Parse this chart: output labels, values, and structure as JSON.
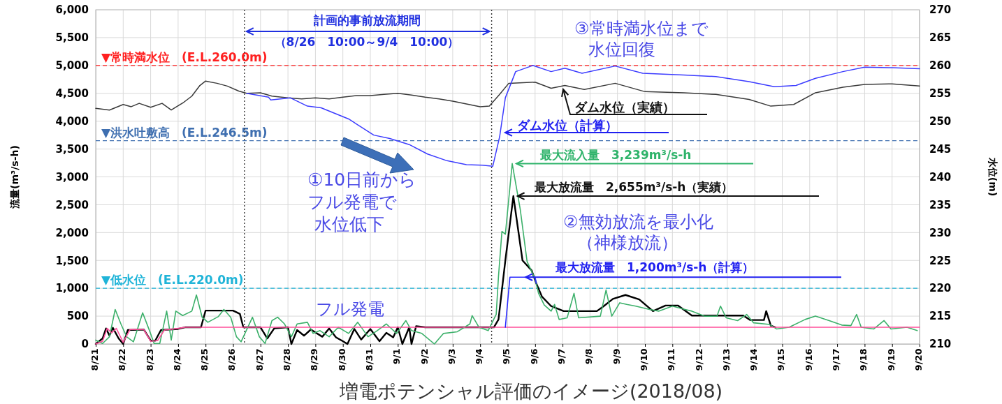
{
  "chart_data": {
    "type": "line",
    "title": "増電ポテンシャル評価のイメージ(2018/08)",
    "ylabel": "流量(m³/s-h)",
    "y2label": "水位(m)",
    "xlim": [
      "2018-08-21",
      "2018-09-20"
    ],
    "xticks": [
      {
        "value": "2018-08-21",
        "label": "8/21"
      },
      {
        "value": "2018-08-22",
        "label": "8/22"
      },
      {
        "value": "2018-08-23",
        "label": "8/23"
      },
      {
        "value": "2018-08-24",
        "label": "8/24"
      },
      {
        "value": "2018-08-25",
        "label": "8/25"
      },
      {
        "value": "2018-08-26",
        "label": "8/26"
      },
      {
        "value": "2018-08-27",
        "label": "8/27"
      },
      {
        "value": "2018-08-28",
        "label": "8/28"
      },
      {
        "value": "2018-08-29",
        "label": "8/29"
      },
      {
        "value": "2018-08-30",
        "label": "8/30"
      },
      {
        "value": "2018-08-31",
        "label": "8/31"
      },
      {
        "value": "2018-09-01",
        "label": "9/1"
      },
      {
        "value": "2018-09-02",
        "label": "9/2"
      },
      {
        "value": "2018-09-03",
        "label": "9/3"
      },
      {
        "value": "2018-09-04",
        "label": "9/4"
      },
      {
        "value": "2018-09-05",
        "label": "9/5"
      },
      {
        "value": "2018-09-06",
        "label": "9/6"
      },
      {
        "value": "2018-09-07",
        "label": "9/7"
      },
      {
        "value": "2018-09-08",
        "label": "9/8"
      },
      {
        "value": "2018-09-09",
        "label": "9/9"
      },
      {
        "value": "2018-09-10",
        "label": "9/10"
      },
      {
        "value": "2018-09-11",
        "label": "9/11"
      },
      {
        "value": "2018-09-12",
        "label": "9/12"
      },
      {
        "value": "2018-09-13",
        "label": "9/13"
      },
      {
        "value": "2018-09-14",
        "label": "9/14"
      },
      {
        "value": "2018-09-15",
        "label": "9/15"
      },
      {
        "value": "2018-09-16",
        "label": "9/16"
      },
      {
        "value": "2018-09-17",
        "label": "9/17"
      },
      {
        "value": "2018-09-18",
        "label": "9/18"
      },
      {
        "value": "2018-09-19",
        "label": "9/19"
      },
      {
        "value": "2018-09-20",
        "label": "9/20"
      }
    ],
    "ylim": [
      0,
      6000
    ],
    "yticks": [
      0,
      {
        "value": 500,
        "label": "500"
      },
      {
        "value": 1000,
        "label": "1,000"
      },
      {
        "value": 1500,
        "label": "1,500"
      },
      {
        "value": 2000,
        "label": "2,000"
      },
      {
        "value": 2500,
        "label": "2,500"
      },
      {
        "value": 3000,
        "label": "3,000"
      },
      {
        "value": 3500,
        "label": "3,500"
      },
      {
        "value": 4000,
        "label": "4,000"
      },
      {
        "value": 4500,
        "label": "4,500"
      },
      {
        "value": 5000,
        "label": "5,000"
      },
      {
        "value": 5500,
        "label": "5,500"
      },
      {
        "value": 6000,
        "label": "6,000"
      }
    ],
    "y2lim": [
      210,
      270
    ],
    "y2ticks": [
      210,
      215,
      220,
      225,
      230,
      235,
      240,
      245,
      250,
      255,
      260,
      265,
      270
    ],
    "grid": true,
    "series": [
      {
        "color": "#3cb06a",
        "x": [
          "2018-08-21T00:00",
          "2018-08-21T06:00",
          "2018-08-21T12:00",
          "2018-08-21T17:00",
          "2018-08-21T22:00",
          "2018-08-22T03:00",
          "2018-08-22T09:00",
          "2018-08-22T17:00",
          "2018-08-22T23:00",
          "2018-08-23T03:00",
          "2018-08-23T08:00",
          "2018-08-23T14:00",
          "2018-08-23T18:00",
          "2018-08-23T22:00",
          "2018-08-24T04:00",
          "2018-08-24T12:00",
          "2018-08-24T16:00",
          "2018-08-24T21:00",
          "2018-08-25T02:00",
          "2018-08-25T11:00",
          "2018-08-25T16:00",
          "2018-08-25T22:00",
          "2018-08-26T03:00",
          "2018-08-26T07:00",
          "2018-08-26T17:00",
          "2018-08-26T23:00",
          "2018-08-27T04:00",
          "2018-08-27T10:00",
          "2018-08-27T15:00",
          "2018-08-27T21:00",
          "2018-08-28T03:00",
          "2018-08-28T08:00",
          "2018-08-28T17:00",
          "2018-08-28T22:00",
          "2018-08-29T04:00",
          "2018-08-29T12:00",
          "2018-08-29T20:00",
          "2018-08-30T05:00",
          "2018-08-30T13:00",
          "2018-08-30T22:00",
          "2018-08-31T06:00",
          "2018-08-31T14:00",
          "2018-08-31T23:00",
          "2018-09-01T07:00",
          "2018-09-01T12:00",
          "2018-09-01T21:00",
          "2018-09-02T08:00",
          "2018-09-02T16:00",
          "2018-09-03T04:00",
          "2018-09-03T15:00",
          "2018-09-03T17:00",
          "2018-09-03T23:00",
          "2018-09-04T07:00",
          "2018-09-04T12:00",
          "2018-09-04T14:00",
          "2018-09-04T16:00",
          "2018-09-04T19:00",
          "2018-09-04T22:00",
          "2018-09-05T04:00",
          "2018-09-05T11:00",
          "2018-09-05T17:00",
          "2018-09-06T00:00",
          "2018-09-06T03:00",
          "2018-09-06T08:00",
          "2018-09-06T14:00",
          "2018-09-06T17:00",
          "2018-09-06T21:00",
          "2018-09-07T04:00",
          "2018-09-07T10:00",
          "2018-09-07T14:00",
          "2018-09-08T09:00",
          "2018-09-08T14:00",
          "2018-09-08T19:00",
          "2018-09-09T02:00",
          "2018-09-09T08:00",
          "2018-09-09T16:00",
          "2018-09-10T04:00",
          "2018-09-10T12:00",
          "2018-09-11T00:00",
          "2018-09-11T11:00",
          "2018-09-11T17:00",
          "2018-09-12T04:00",
          "2018-09-12T15:00",
          "2018-09-12T18:00",
          "2018-09-12T23:00",
          "2018-09-13T09:00",
          "2018-09-13T17:00",
          "2018-09-13T23:00",
          "2018-09-14T13:00",
          "2018-09-14T19:00",
          "2018-09-15T06:00",
          "2018-09-15T20:00",
          "2018-09-16T05:00",
          "2018-09-16T17:00",
          "2018-09-17T04:00",
          "2018-09-17T12:00",
          "2018-09-17T17:00",
          "2018-09-17T21:00",
          "2018-09-18T08:00",
          "2018-09-18T17:00",
          "2018-09-18T23:00",
          "2018-09-19T13:00",
          "2018-09-19T22:00"
        ],
        "values": [
          70,
          10,
          130,
          620,
          360,
          130,
          40,
          560,
          240,
          10,
          10,
          590,
          70,
          590,
          510,
          590,
          880,
          480,
          390,
          490,
          620,
          480,
          130,
          40,
          480,
          130,
          10,
          420,
          480,
          360,
          130,
          360,
          390,
          190,
          240,
          130,
          300,
          190,
          390,
          130,
          240,
          360,
          190,
          420,
          240,
          190,
          0,
          190,
          220,
          360,
          510,
          300,
          240,
          450,
          530,
          1210,
          2020,
          1970,
          3239,
          2420,
          1480,
          1170,
          910,
          700,
          590,
          710,
          440,
          470,
          910,
          470,
          500,
          970,
          500,
          740,
          710,
          680,
          620,
          590,
          680,
          620,
          590,
          500,
          500,
          680,
          470,
          420,
          530,
          380,
          350,
          270,
          300,
          440,
          500,
          420,
          340,
          330,
          530,
          300,
          270,
          420,
          270,
          300,
          240
        ]
      },
      {
        "color": "#ff4f9a",
        "x": [
          "2018-08-21T00:00",
          "2018-08-21T06:00",
          "2018-08-21T10:00",
          "2018-08-21T14:00",
          "2018-08-21T18:00",
          "2018-08-22T00:00",
          "2018-08-22T06:00",
          "2018-08-22T18:00",
          "2018-08-23T00:00",
          "2018-08-23T06:00",
          "2018-08-23T12:00",
          "2018-08-24T00:00",
          "2018-08-24T06:00",
          "2018-09-20T00:00"
        ],
        "values": [
          0,
          50,
          280,
          200,
          280,
          30,
          260,
          260,
          50,
          60,
          250,
          280,
          300,
          300
        ]
      },
      {
        "color": "#2a2aff",
        "x": [
          "2018-09-04T22:00",
          "2018-09-05T02:00",
          "2018-09-06T00:00",
          "2018-09-06T01:00"
        ],
        "values": [
          300,
          1200,
          1200,
          1090
        ]
      },
      {
        "color": "#000000",
        "x": [
          "2018-08-21T00:00",
          "2018-08-21T06:00",
          "2018-08-21T09:00",
          "2018-08-21T12:00",
          "2018-08-21T15:00",
          "2018-08-21T20:00",
          "2018-08-22T00:00",
          "2018-08-22T04:00",
          "2018-08-22T18:00",
          "2018-08-23T00:00",
          "2018-08-23T04:00",
          "2018-08-23T09:00",
          "2018-08-24T00:00",
          "2018-08-24T06:00",
          "2018-08-24T20:00",
          "2018-08-25T00:00",
          "2018-08-26T00:00",
          "2018-08-26T06:00",
          "2018-08-26T09:00",
          "2018-08-27T00:00",
          "2018-08-27T06:00",
          "2018-08-27T12:00",
          "2018-08-28T00:00",
          "2018-08-28T03:00",
          "2018-08-28T08:00",
          "2018-08-28T14:00",
          "2018-08-28T20:00",
          "2018-08-29T06:00",
          "2018-08-29T12:00",
          "2018-08-29T18:00",
          "2018-08-30T00:00",
          "2018-08-30T04:00",
          "2018-08-30T10:00",
          "2018-08-30T16:00",
          "2018-08-31T00:00",
          "2018-08-31T08:00",
          "2018-08-31T14:00",
          "2018-08-31T20:00",
          "2018-09-01T00:00",
          "2018-09-01T04:00",
          "2018-09-01T10:00",
          "2018-09-01T12:00",
          "2018-09-01T16:00",
          "2018-09-02T00:00",
          "2018-09-04T12:00",
          "2018-09-04T16:00",
          "2018-09-04T22:00",
          "2018-09-05T05:00",
          "2018-09-05T13:00",
          "2018-09-05T21:00",
          "2018-09-06T01:00",
          "2018-09-06T06:00",
          "2018-09-06T14:00",
          "2018-09-07T01:00",
          "2018-09-08T06:00",
          "2018-09-08T12:00",
          "2018-09-08T20:00",
          "2018-09-09T07:00",
          "2018-09-09T19:00",
          "2018-09-10T07:00",
          "2018-09-10T18:00",
          "2018-09-11T05:00",
          "2018-09-11T17:00",
          "2018-09-13T14:00",
          "2018-09-13T20:00",
          "2018-09-14T08:00",
          "2018-09-14T10:00",
          "2018-09-14T14:00",
          "2018-09-14T18:00"
        ],
        "values": [
          0,
          100,
          280,
          150,
          290,
          100,
          0,
          250,
          260,
          60,
          60,
          250,
          270,
          300,
          300,
          600,
          600,
          540,
          300,
          300,
          100,
          280,
          300,
          0,
          250,
          150,
          260,
          130,
          280,
          120,
          50,
          0,
          270,
          80,
          270,
          50,
          200,
          120,
          300,
          0,
          300,
          0,
          320,
          300,
          300,
          440,
          1500,
          2655,
          1500,
          1320,
          1090,
          850,
          680,
          590,
          590,
          680,
          810,
          880,
          800,
          590,
          690,
          690,
          510,
          510,
          430,
          430,
          590,
          330,
          300
        ]
      },
      {
        "name": "ダム水位（実績）",
        "color": "#3a3a3a",
        "axis": "y2",
        "x": [
          "2018-08-21T00:00",
          "2018-08-21T12:00",
          "2018-08-22T00:00",
          "2018-08-22T07:00",
          "2018-08-22T14:00",
          "2018-08-23T00:00",
          "2018-08-23T10:00",
          "2018-08-23T18:00",
          "2018-08-24T05:00",
          "2018-08-24T12:00",
          "2018-08-24T19:00",
          "2018-08-25T00:00",
          "2018-08-25T10:00",
          "2018-08-25T19:00",
          "2018-08-26T05:00",
          "2018-08-26T12:00",
          "2018-08-27T00:00",
          "2018-08-27T10:00",
          "2018-08-28T00:00",
          "2018-08-28T12:00",
          "2018-08-29T00:00",
          "2018-08-29T12:00",
          "2018-08-30T00:00",
          "2018-08-30T12:00",
          "2018-08-31T00:00",
          "2018-08-31T12:00",
          "2018-09-01T00:00",
          "2018-09-01T12:00",
          "2018-09-02T00:00",
          "2018-09-02T12:00",
          "2018-09-03T00:00",
          "2018-09-03T12:00",
          "2018-09-04T00:00",
          "2018-09-04T08:00",
          "2018-09-04T17:00",
          "2018-09-05T01:00",
          "2018-09-06T00:00",
          "2018-09-06T14:00",
          "2018-09-07T02:00",
          "2018-09-07T19:00",
          "2018-09-08T22:00",
          "2018-09-10T00:00",
          "2018-09-11T10:00",
          "2018-09-12T14:00",
          "2018-09-13T19:00",
          "2018-09-14T14:00",
          "2018-09-15T10:00",
          "2018-09-16T05:00",
          "2018-09-17T05:00",
          "2018-09-18T00:00",
          "2018-09-19T00:00",
          "2018-09-20T00:00"
        ],
        "values": [
          252.3,
          252.0,
          253.0,
          252.6,
          253.2,
          252.5,
          253.2,
          252.0,
          253.4,
          254.5,
          256.4,
          257.2,
          256.8,
          256.3,
          255.4,
          255.0,
          255.1,
          254.5,
          254.2,
          254.0,
          254.2,
          254.0,
          254.3,
          254.6,
          254.6,
          254.8,
          255.0,
          254.7,
          254.3,
          254.0,
          253.6,
          253.1,
          252.6,
          252.7,
          254.8,
          256.8,
          257.0,
          255.9,
          256.4,
          255.7,
          256.8,
          255.3,
          255.1,
          254.8,
          253.9,
          252.7,
          253.0,
          255.1,
          256.1,
          256.6,
          256.7,
          256.3
        ]
      },
      {
        "name": "ダム水位（計算）",
        "color": "#3c3cff",
        "axis": "y2",
        "x": [
          "2018-08-26T12:00",
          "2018-08-27T07:00",
          "2018-08-27T09:00",
          "2018-08-28T02:00",
          "2018-08-28T17:00",
          "2018-08-29T05:00",
          "2018-08-30T05:00",
          "2018-08-31T03:00",
          "2018-08-31T17:00",
          "2018-09-01T10:00",
          "2018-09-02T02:00",
          "2018-09-02T19:00",
          "2018-09-03T12:00",
          "2018-09-04T02:00",
          "2018-09-04T11:00",
          "2018-09-04T17:00",
          "2018-09-04T22:00",
          "2018-09-05T07:00",
          "2018-09-05T22:00",
          "2018-09-06T14:00",
          "2018-09-07T02:00",
          "2018-09-07T17:00",
          "2018-09-08T22:00",
          "2018-09-09T22:00",
          "2018-09-11T10:00",
          "2018-09-12T14:00",
          "2018-09-13T19:00",
          "2018-09-14T17:00",
          "2018-09-15T12:00",
          "2018-09-16T05:00",
          "2018-09-17T05:00",
          "2018-09-18T00:00",
          "2018-09-19T00:00",
          "2018-09-20T00:00"
        ],
        "values": [
          255.0,
          254.3,
          253.8,
          254.2,
          252.7,
          252.4,
          250.4,
          247.5,
          246.9,
          245.8,
          244.1,
          242.9,
          242.2,
          242.1,
          241.9,
          247.2,
          254.2,
          258.9,
          260.0,
          258.9,
          259.5,
          258.6,
          259.9,
          258.6,
          258.3,
          258.0,
          257.1,
          256.2,
          256.4,
          257.7,
          258.9,
          259.7,
          259.6,
          259.4
        ]
      }
    ],
    "ref_lines": [
      {
        "axis": "y2",
        "value": 260,
        "label": "▼常時満水位　(E.L.260.0m)",
        "color": "#ff2020",
        "line_style": "dashed"
      },
      {
        "axis": "y2",
        "value": 246.5,
        "label": "▼洪水吐敷高　(E.L.246.5m)",
        "color": "#3f6fb0",
        "line_style": "dashed"
      },
      {
        "axis": "y2",
        "value": 220,
        "label": "▼低水位　(E.L.220.0m)",
        "color": "#20b4d8",
        "line_style": "dashed"
      },
      {
        "axis": "x",
        "value": "2018-08-26T10:00",
        "color": "#333333",
        "line_style": "dotted"
      },
      {
        "axis": "x",
        "value": "2018-09-04T10:00",
        "color": "#333333",
        "line_style": "dotted"
      }
    ],
    "annotations": [
      "計画的事前放流期間",
      "（8/26　10:00～9/4　10:00）",
      "③常時満水位まで",
      "水位回復",
      {
        "text": "最大流入量　3,239m³/s-h",
        "x": "2018-09-05T04:00",
        "y": 3239
      },
      {
        "text": "最大放流量　2,655m³/s-h（実績）",
        "x": "2018-09-05T05:00",
        "y": 2655
      },
      "②無効放流を最小化",
      "（神様放流）",
      {
        "text": "最大放流量　1,200m³/s-h（計算）",
        "x": "2018-09-05T12:00",
        "y": 1200
      },
      "①10日前から",
      "フル発電で",
      "水位低下",
      "フル発電"
    ]
  }
}
